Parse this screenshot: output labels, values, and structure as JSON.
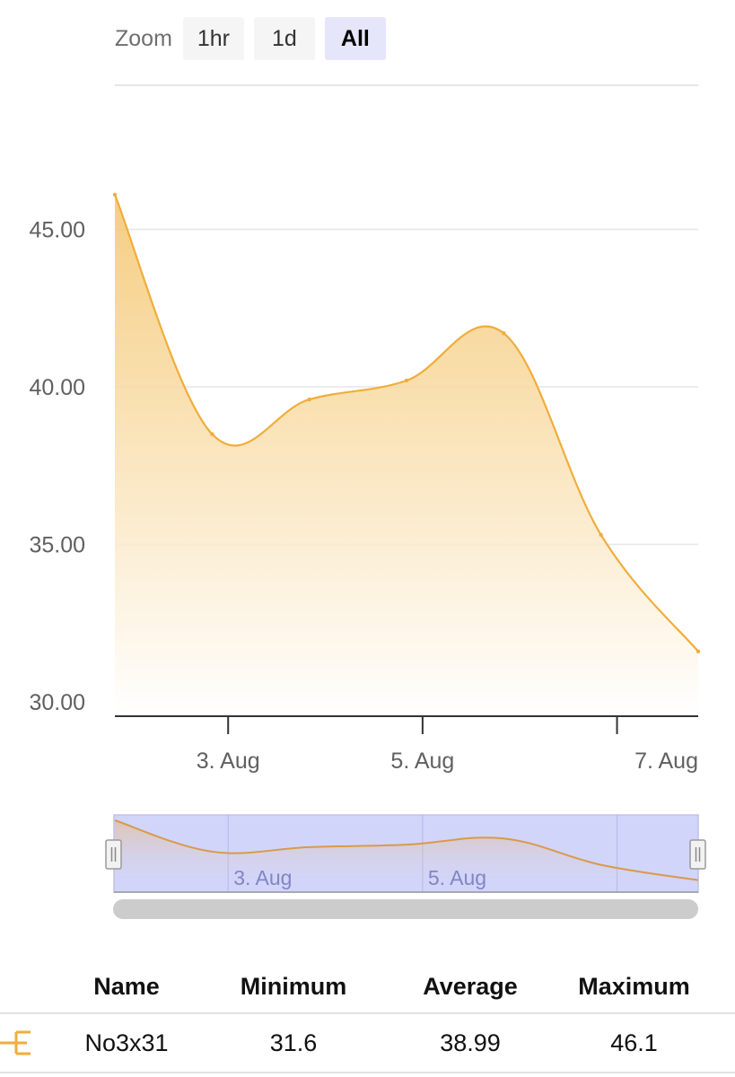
{
  "zoom": {
    "label": "Zoom",
    "buttons": [
      "1hr",
      "1d",
      "All"
    ],
    "selected": "All"
  },
  "colors": {
    "series": "#f0ad3c",
    "navigator_mask": "#d2d5fa",
    "grid": "#e6e6e6"
  },
  "chart_data": {
    "type": "area",
    "x": [
      "2023-08-01",
      "2023-08-02",
      "2023-08-03",
      "2023-08-04",
      "2023-08-05",
      "2023-08-06",
      "2023-08-07"
    ],
    "series": [
      {
        "name": "No3x31",
        "values": [
          46.1,
          38.5,
          39.6,
          40.2,
          41.7,
          35.3,
          31.6
        ]
      }
    ],
    "y_ticks": [
      "30.00",
      "35.00",
      "40.00",
      "45.00"
    ],
    "x_ticks": [
      "3. Aug",
      "5. Aug",
      "7. Aug"
    ],
    "navigator_ticks": [
      "3. Aug",
      "5. Aug"
    ],
    "ylim": [
      30,
      46.1
    ],
    "grid": true
  },
  "stats": {
    "headers": [
      "Name",
      "Minimum",
      "Average",
      "Maximum"
    ],
    "rows": [
      {
        "name": "No3x31",
        "min": "31.6",
        "avg": "38.99",
        "max": "46.1"
      }
    ]
  }
}
